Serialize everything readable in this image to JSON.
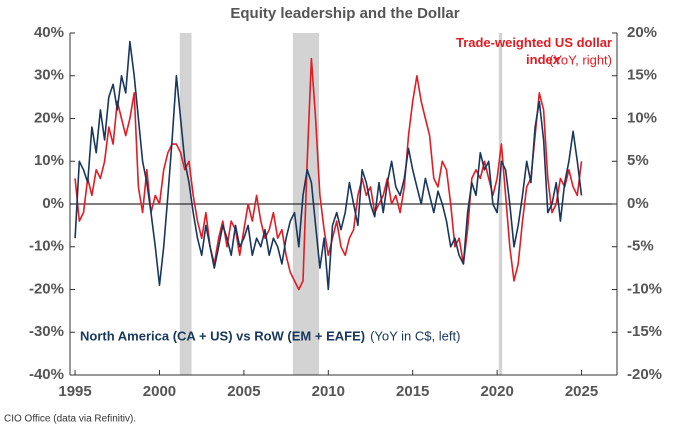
{
  "chart_data": {
    "type": "line",
    "title": "Equity leadership and the Dollar",
    "source": "CIO Office (data via Refinitiv).",
    "x": [
      1995,
      1995.25,
      1995.5,
      1995.75,
      1996,
      1996.25,
      1996.5,
      1996.75,
      1997,
      1997.25,
      1997.5,
      1997.75,
      1998,
      1998.25,
      1998.5,
      1998.75,
      1999,
      1999.25,
      1999.5,
      1999.75,
      2000,
      2000.25,
      2000.5,
      2000.75,
      2001,
      2001.25,
      2001.5,
      2001.75,
      2002,
      2002.25,
      2002.5,
      2002.75,
      2003,
      2003.25,
      2003.5,
      2003.75,
      2004,
      2004.25,
      2004.5,
      2004.75,
      2005,
      2005.25,
      2005.5,
      2005.75,
      2006,
      2006.25,
      2006.5,
      2006.75,
      2007,
      2007.25,
      2007.5,
      2007.75,
      2008,
      2008.25,
      2008.5,
      2008.75,
      2009,
      2009.25,
      2009.5,
      2009.75,
      2010,
      2010.25,
      2010.5,
      2010.75,
      2011,
      2011.25,
      2011.5,
      2011.75,
      2012,
      2012.25,
      2012.5,
      2012.75,
      2013,
      2013.25,
      2013.5,
      2013.75,
      2014,
      2014.25,
      2014.5,
      2014.75,
      2015,
      2015.25,
      2015.5,
      2015.75,
      2016,
      2016.25,
      2016.5,
      2016.75,
      2017,
      2017.25,
      2017.5,
      2017.75,
      2018,
      2018.25,
      2018.5,
      2018.75,
      2019,
      2019.25,
      2019.5,
      2019.75,
      2020,
      2020.25,
      2020.5,
      2020.75,
      2021,
      2021.25,
      2021.5,
      2021.75,
      2022,
      2022.25,
      2022.5,
      2022.75,
      2023,
      2023.25,
      2023.5,
      2023.75,
      2024,
      2024.25,
      2024.5,
      2024.75,
      2025
    ],
    "series": [
      {
        "name": "North America (CA + US) vs RoW (EM + EAFE)",
        "note": "(YoY in C$, left)",
        "color": "#17375e",
        "axis": "y",
        "values": [
          -8,
          10,
          8,
          5,
          18,
          12,
          22,
          15,
          25,
          28,
          22,
          30,
          26,
          38,
          30,
          20,
          10,
          5,
          -2,
          -10,
          -19,
          -10,
          2,
          15,
          30,
          20,
          10,
          5,
          -2,
          -8,
          -12,
          -5,
          -10,
          -15,
          -10,
          -5,
          -8,
          -12,
          -5,
          -10,
          -8,
          -5,
          -12,
          -8,
          -10,
          -6,
          -12,
          -8,
          -10,
          -14,
          -8,
          -4,
          -2,
          -10,
          2,
          8,
          5,
          -5,
          -15,
          -8,
          -20,
          -5,
          -2,
          -6,
          -2,
          5,
          0,
          -5,
          8,
          5,
          0,
          -3,
          5,
          -2,
          5,
          10,
          4,
          2,
          6,
          13,
          8,
          4,
          0,
          6,
          2,
          -2,
          3,
          0,
          -4,
          -10,
          -8,
          -12,
          -14,
          -2,
          5,
          2,
          12,
          8,
          10,
          0,
          -2,
          10,
          8,
          0,
          -10,
          -5,
          2,
          10,
          5,
          18,
          24,
          15,
          -2,
          0,
          5,
          -4,
          5,
          10,
          17,
          10,
          2
        ]
      },
      {
        "name": "Trade-weighted US dollar index",
        "note": "(YoY, right)",
        "color": "#e31b23",
        "axis": "y2",
        "values": [
          3,
          -2,
          -1,
          3,
          1,
          4,
          3,
          5,
          9,
          7,
          12,
          10,
          8,
          10,
          13,
          2,
          -1,
          4,
          -1,
          1,
          0,
          4,
          6,
          7,
          7,
          6,
          4,
          5,
          1,
          -2,
          -4,
          -1,
          -5,
          -7,
          -4,
          -2,
          -5,
          -2,
          -3,
          -6,
          -3,
          0,
          -2,
          1,
          -2,
          -4,
          -3,
          -1,
          -4,
          -3,
          -6,
          -8,
          -9,
          -10,
          -9,
          5,
          17,
          10,
          1,
          -3,
          -6,
          -4,
          -2,
          -5,
          -6,
          -4,
          -3,
          1,
          3,
          1,
          2,
          -1,
          0,
          1,
          3,
          0,
          1,
          -1,
          2,
          8,
          12,
          15,
          12,
          10,
          8,
          3,
          2,
          5,
          4,
          0,
          -5,
          -4,
          -7,
          -3,
          3,
          4,
          3,
          5,
          3,
          1,
          3,
          7,
          1,
          -5,
          -9,
          -7,
          -2,
          2,
          3,
          8,
          13,
          11,
          3,
          -1,
          0,
          3,
          2,
          4,
          2,
          1,
          5
        ]
      }
    ],
    "shaded_regions": [
      [
        2001.2,
        2001.9
      ],
      [
        2007.9,
        2009.45
      ],
      [
        2020.1,
        2020.3
      ]
    ],
    "shaded_color": "#d3d3d3",
    "xlim": [
      1994.7,
      2027.1
    ],
    "xticks": [
      1995,
      2000,
      2005,
      2010,
      2015,
      2020,
      2025
    ],
    "ylim": [
      -40,
      40
    ],
    "yticks": [
      {
        "value": -40,
        "label": "-40%"
      },
      {
        "value": -30,
        "label": "-30%"
      },
      {
        "value": -20,
        "label": "-20%"
      },
      {
        "value": -10,
        "label": "-10%"
      },
      {
        "value": 0,
        "label": "0%"
      },
      {
        "value": 10,
        "label": "10%"
      },
      {
        "value": 20,
        "label": "20%"
      },
      {
        "value": 30,
        "label": "30%"
      },
      {
        "value": 40,
        "label": "40%"
      }
    ],
    "y2lim": [
      -20,
      20
    ],
    "y2ticks": [
      {
        "value": -20,
        "label": "-20%"
      },
      {
        "value": -15,
        "label": "-15%"
      },
      {
        "value": -10,
        "label": "-10%"
      },
      {
        "value": -5,
        "label": "-5%"
      },
      {
        "value": 0,
        "label": "0%"
      },
      {
        "value": 5,
        "label": "5%"
      },
      {
        "value": 10,
        "label": "10%"
      },
      {
        "value": 15,
        "label": "15%"
      },
      {
        "value": 20,
        "label": "20%"
      }
    ]
  }
}
